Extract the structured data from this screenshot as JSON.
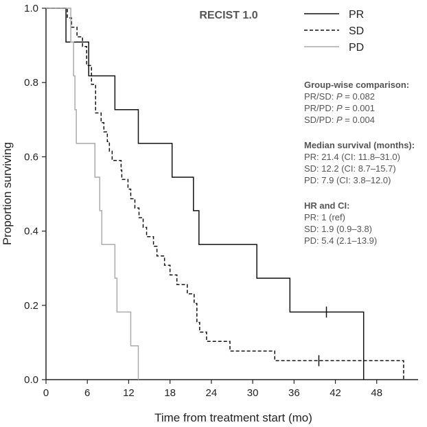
{
  "chart_data": {
    "type": "line",
    "title": "RECIST 1.0",
    "xlabel": "Time from treatment start (mo)",
    "ylabel": "Proportion surviving",
    "xlim": [
      0,
      54
    ],
    "ylim": [
      0,
      1.0
    ],
    "xticks": [
      "0",
      "6",
      "12",
      "18",
      "24",
      "30",
      "36",
      "42",
      "48"
    ],
    "xtick_values": [
      0,
      6,
      12,
      18,
      24,
      30,
      36,
      42,
      48
    ],
    "yticks": [
      "0.0",
      "0.2",
      "0.4",
      "0.6",
      "0.8",
      "1.0"
    ],
    "ytick_values": [
      0,
      0.2,
      0.4,
      0.6,
      0.8,
      1.0
    ],
    "grid": false,
    "legend_position": "top-right",
    "series": [
      {
        "name": "PR",
        "color": "#111111",
        "dash": "solid",
        "steps": [
          [
            0,
            1.0
          ],
          [
            2.9,
            0.909
          ],
          [
            6.2,
            0.818
          ],
          [
            10.0,
            0.727
          ],
          [
            13.4,
            0.636
          ],
          [
            18.3,
            0.545
          ],
          [
            21.4,
            0.455
          ],
          [
            22.2,
            0.364
          ],
          [
            30.6,
            0.273
          ],
          [
            35.4,
            0.182
          ],
          [
            46.1,
            0.0
          ]
        ],
        "censors": [
          [
            40.7,
            0.182
          ]
        ]
      },
      {
        "name": "SD",
        "color": "#111111",
        "dash": "dashed",
        "steps": [
          [
            0,
            1.0
          ],
          [
            3.1,
            0.974
          ],
          [
            3.7,
            0.949
          ],
          [
            4.5,
            0.923
          ],
          [
            5.3,
            0.897
          ],
          [
            5.9,
            0.846
          ],
          [
            6.6,
            0.795
          ],
          [
            7.2,
            0.718
          ],
          [
            8.0,
            0.692
          ],
          [
            8.4,
            0.667
          ],
          [
            8.9,
            0.641
          ],
          [
            9.2,
            0.615
          ],
          [
            9.6,
            0.59
          ],
          [
            10.9,
            0.564
          ],
          [
            11.0,
            0.539
          ],
          [
            11.9,
            0.513
          ],
          [
            12.3,
            0.487
          ],
          [
            12.9,
            0.462
          ],
          [
            13.5,
            0.436
          ],
          [
            14.1,
            0.41
          ],
          [
            14.6,
            0.385
          ],
          [
            15.6,
            0.359
          ],
          [
            16.1,
            0.333
          ],
          [
            17.2,
            0.308
          ],
          [
            18.0,
            0.282
          ],
          [
            19.0,
            0.256
          ],
          [
            20.5,
            0.231
          ],
          [
            21.5,
            0.205
          ],
          [
            21.9,
            0.154
          ],
          [
            22.3,
            0.128
          ],
          [
            23.3,
            0.103
          ],
          [
            26.7,
            0.077
          ],
          [
            33.2,
            0.051
          ],
          [
            51.9,
            0.0
          ]
        ],
        "censors": [
          [
            39.6,
            0.051
          ]
        ]
      },
      {
        "name": "PD",
        "color": "#aaaaaa",
        "dash": "solid",
        "steps": [
          [
            0,
            1.0
          ],
          [
            3.6,
            0.909
          ],
          [
            4.0,
            0.818
          ],
          [
            4.2,
            0.727
          ],
          [
            4.4,
            0.636
          ],
          [
            7.1,
            0.545
          ],
          [
            7.8,
            0.455
          ],
          [
            8.1,
            0.364
          ],
          [
            10.0,
            0.273
          ],
          [
            10.3,
            0.182
          ],
          [
            12.3,
            0.091
          ],
          [
            13.4,
            0.0
          ]
        ],
        "censors": []
      }
    ],
    "annotations": [
      {
        "heading": "Group-wise comparison:",
        "lines": [
          "PR/SD: P = 0.082",
          "PR/PD: P = 0.001",
          "SD/PD: P = 0.004"
        ]
      },
      {
        "heading": "Median survival (months):",
        "lines": [
          "PR: 21.4 (CI: 11.8–31.0)",
          "SD: 12.2 (CI: 8.7–15.7)",
          "PD: 7.9 (CI: 3.8–12.0)"
        ]
      },
      {
        "heading": "HR and CI:",
        "lines": [
          "PR: 1 (ref)",
          "SD: 1.9 (0.9–3.8)",
          "PD: 5.4 (2.1–13.9)"
        ]
      }
    ]
  }
}
